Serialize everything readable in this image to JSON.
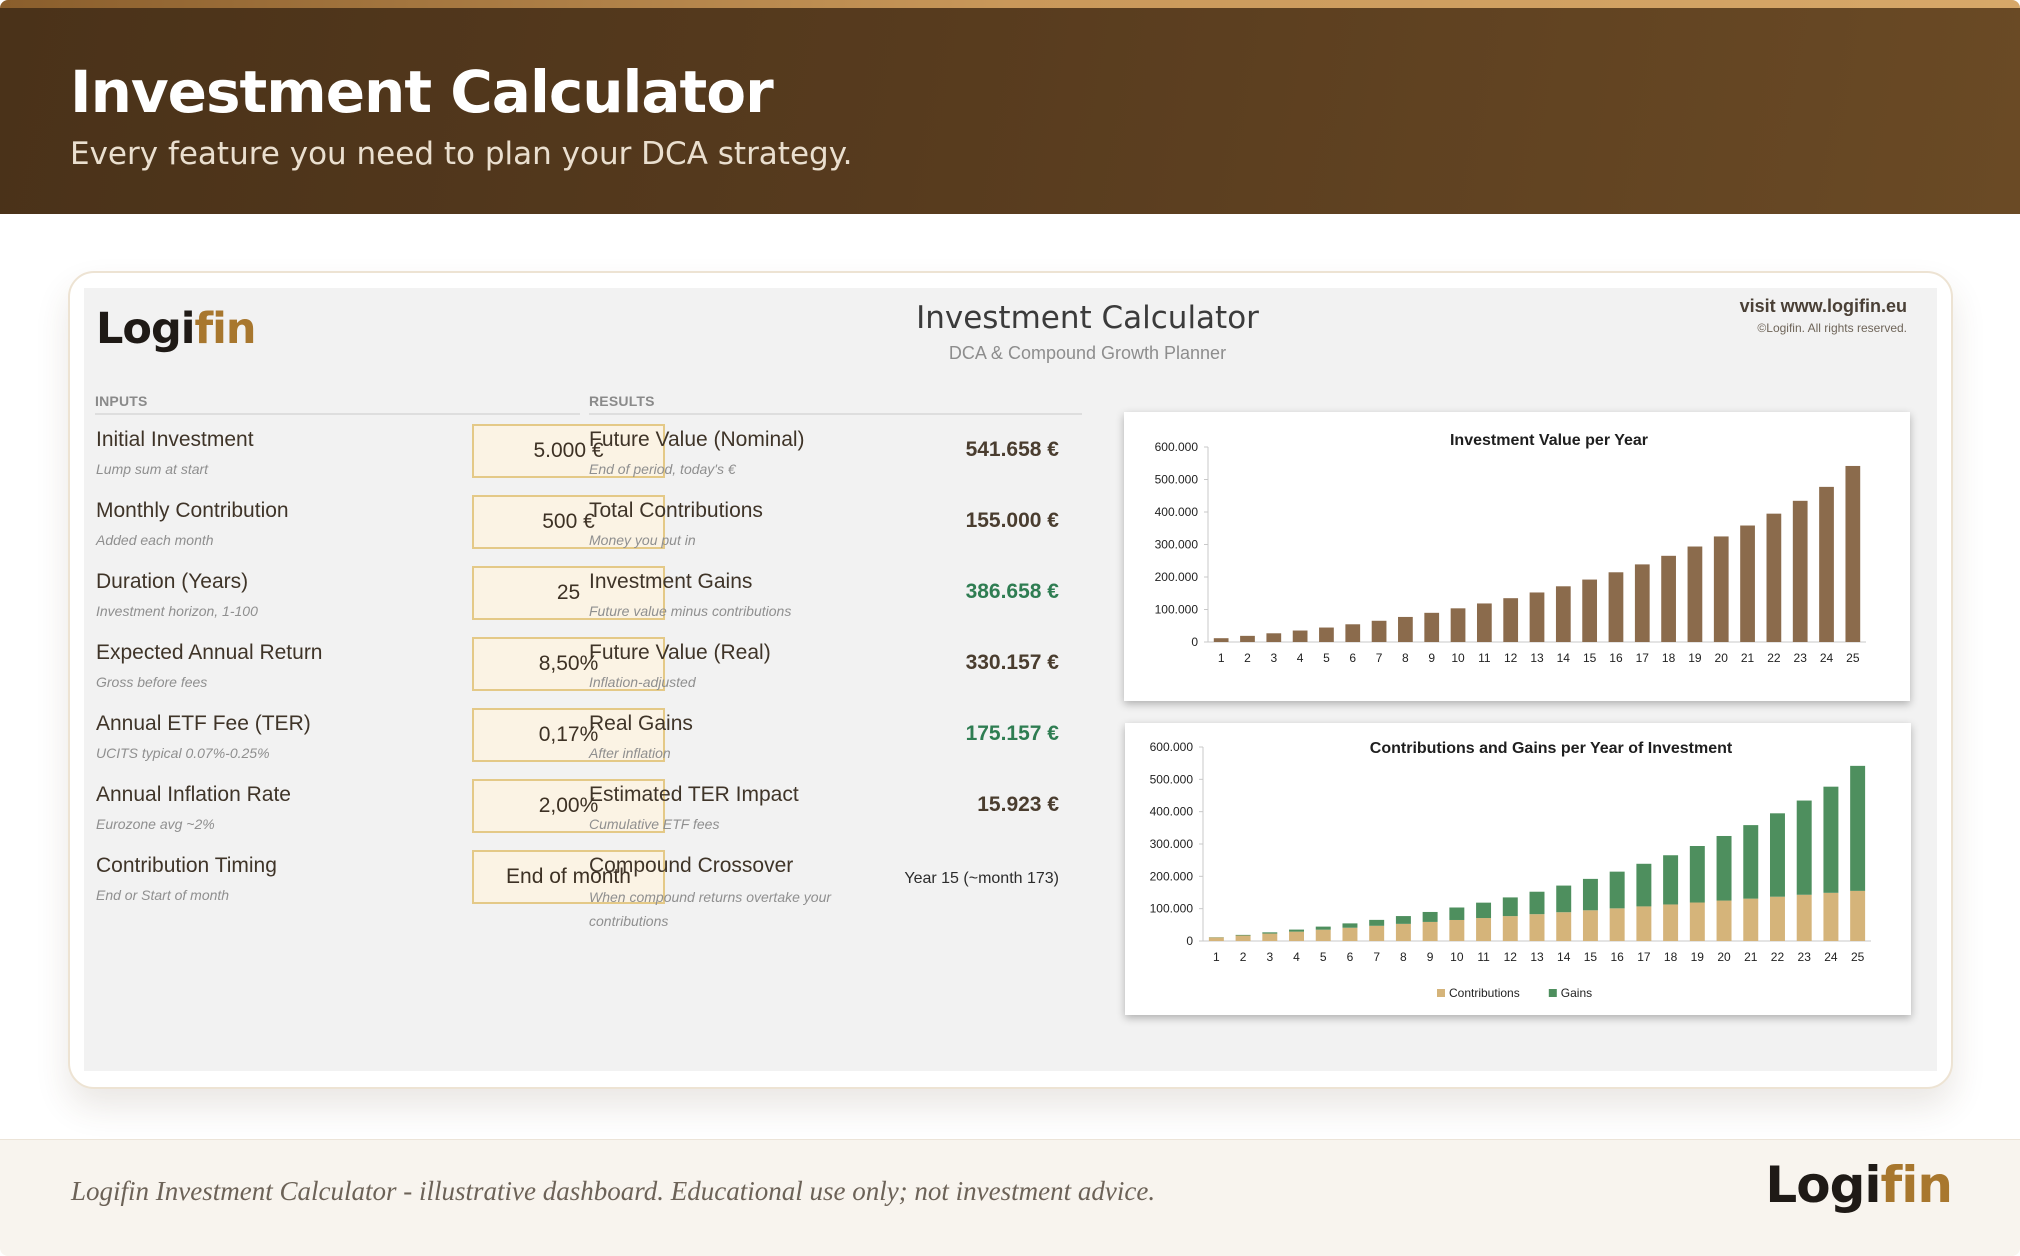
{
  "hero": {
    "title": "Investment Calculator",
    "subtitle": "Every feature you need to plan your DCA strategy."
  },
  "sheet": {
    "logo_part1": "Logi",
    "logo_part2": "fin",
    "title": "Investment Calculator",
    "subtitle": "DCA & Compound Growth Planner",
    "visit": "visit www.logifin.eu",
    "copyright": "©Logifin. All rights reserved."
  },
  "inputs": {
    "section_label": "INPUTS",
    "rows": [
      {
        "label": "Initial Investment",
        "hint": "Lump sum at start",
        "value": "5.000 €"
      },
      {
        "label": "Monthly Contribution",
        "hint": "Added each month",
        "value": "500 €"
      },
      {
        "label": "Duration (Years)",
        "hint": "Investment horizon, 1-100",
        "value": "25"
      },
      {
        "label": "Expected Annual Return",
        "hint": "Gross before fees",
        "value": "8,50%"
      },
      {
        "label": "Annual ETF Fee (TER)",
        "hint": "UCITS typical 0.07%-0.25%",
        "value": "0,17%"
      },
      {
        "label": "Annual Inflation Rate",
        "hint": "Eurozone avg ~2%",
        "value": "2,00%"
      },
      {
        "label": "Contribution Timing",
        "hint": "End or Start of month",
        "value": "End of month"
      }
    ]
  },
  "results": {
    "section_label": "RESULTS",
    "rows": [
      {
        "label": "Future Value (Nominal)",
        "hint": "End of period, today's €",
        "value": "541.658 €"
      },
      {
        "label": "Total Contributions",
        "hint": "Money you put in",
        "value": "155.000 €"
      },
      {
        "label": "Investment Gains",
        "hint": "Future value minus contributions",
        "value": "386.658 €"
      },
      {
        "label": "Future Value (Real)",
        "hint": "Inflation-adjusted",
        "value": "330.157 €"
      },
      {
        "label": "Real Gains",
        "hint": "After inflation",
        "value": "175.157 €"
      },
      {
        "label": "Estimated TER Impact",
        "hint": "Cumulative ETF fees",
        "value": "15.923 €"
      },
      {
        "label": "Compound Crossover",
        "hint": "When compound returns overtake your contributions",
        "value": "Year 15 (~month 173)"
      }
    ]
  },
  "colors": {
    "bar_value": "#8b6b4c",
    "contributions": "#d5b47a",
    "gains": "#4e8f5e",
    "gain_text": "#2f7d52"
  },
  "chart_data": [
    {
      "type": "bar",
      "title": "Investment Value per Year",
      "categories": [
        "1",
        "2",
        "3",
        "4",
        "5",
        "6",
        "7",
        "8",
        "9",
        "10",
        "11",
        "12",
        "13",
        "14",
        "15",
        "16",
        "17",
        "18",
        "19",
        "20",
        "21",
        "22",
        "23",
        "24",
        "25"
      ],
      "values": [
        11700,
        18900,
        26800,
        35300,
        44500,
        54500,
        65300,
        77100,
        89800,
        103600,
        118600,
        134800,
        152400,
        171400,
        192100,
        214500,
        238800,
        265200,
        293800,
        324800,
        358400,
        394900,
        434400,
        477300,
        541658
      ],
      "ylim": [
        0,
        600000
      ],
      "yticks": [
        "0",
        "100.000",
        "200.000",
        "300.000",
        "400.000",
        "500.000",
        "600.000"
      ],
      "xlabel": "",
      "ylabel": "",
      "legend": "none"
    },
    {
      "type": "bar",
      "stacked": true,
      "title": "Contributions and Gains per Year of Investment",
      "categories": [
        "1",
        "2",
        "3",
        "4",
        "5",
        "6",
        "7",
        "8",
        "9",
        "10",
        "11",
        "12",
        "13",
        "14",
        "15",
        "16",
        "17",
        "18",
        "19",
        "20",
        "21",
        "22",
        "23",
        "24",
        "25"
      ],
      "series": [
        {
          "name": "Contributions",
          "values": [
            11000,
            17000,
            23000,
            29000,
            35000,
            41000,
            47000,
            53000,
            59000,
            65000,
            71000,
            77000,
            83000,
            89000,
            95000,
            101000,
            107000,
            113000,
            119000,
            125000,
            131000,
            137000,
            143000,
            149000,
            155000
          ]
        },
        {
          "name": "Gains",
          "values": [
            700,
            1900,
            3800,
            6300,
            9500,
            13500,
            18300,
            24100,
            30800,
            38600,
            47600,
            57800,
            69400,
            82400,
            97100,
            113500,
            131800,
            152200,
            174800,
            199800,
            227400,
            257900,
            291400,
            328300,
            386658
          ]
        }
      ],
      "ylim": [
        0,
        600000
      ],
      "yticks": [
        "0",
        "100.000",
        "200.000",
        "300.000",
        "400.000",
        "500.000",
        "600.000"
      ],
      "xlabel": "",
      "ylabel": "",
      "legend": "bottom"
    }
  ],
  "footer": {
    "text": "Logifin Investment Calculator - illustrative dashboard. Educational use only; not investment advice.",
    "logo_part1": "Logi",
    "logo_part2": "fin"
  }
}
